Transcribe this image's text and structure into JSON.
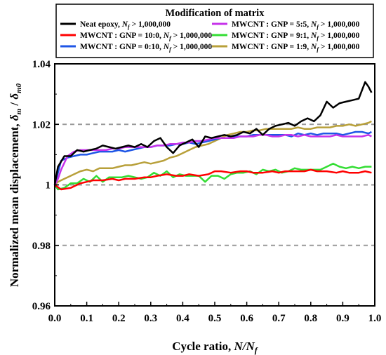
{
  "chart_data": {
    "type": "line",
    "title": "",
    "xlabel": {
      "prefix": "Cycle ratio, ",
      "math": "N/N",
      "sub": "f"
    },
    "ylabel": {
      "prefix": "Normalized mean displacement, ",
      "num": "δ",
      "num_sub": "m",
      "den": "δ",
      "den_sub": "m0"
    },
    "xlim": [
      0,
      1
    ],
    "ylim": [
      0.96,
      1.04
    ],
    "x_ticks": [
      "0.0",
      "0.1",
      "0.2",
      "0.3",
      "0.4",
      "0.5",
      "0.6",
      "0.7",
      "0.8",
      "0.9",
      "1.0"
    ],
    "y_ticks": [
      "0.96",
      "0.98",
      "1",
      "1.02",
      "1.04"
    ],
    "reference_lines": [
      0.98,
      1.0,
      1.02
    ],
    "legend": {
      "title": "Modification of matrix",
      "placement": "top, inside plot"
    },
    "series": [
      {
        "name": "Neat epoxy, ",
        "name_suffix": " > 1,000,000",
        "color": "#000000",
        "x": [
          0,
          0.01,
          0.03,
          0.05,
          0.07,
          0.09,
          0.11,
          0.13,
          0.15,
          0.17,
          0.19,
          0.21,
          0.23,
          0.25,
          0.27,
          0.29,
          0.31,
          0.33,
          0.35,
          0.37,
          0.39,
          0.41,
          0.43,
          0.45,
          0.47,
          0.49,
          0.51,
          0.53,
          0.55,
          0.57,
          0.59,
          0.61,
          0.63,
          0.65,
          0.67,
          0.69,
          0.71,
          0.73,
          0.75,
          0.77,
          0.79,
          0.81,
          0.83,
          0.85,
          0.87,
          0.89,
          0.91,
          0.93,
          0.95,
          0.97,
          0.98,
          0.99
        ],
        "y": [
          1.0,
          1.006,
          1.0095,
          1.0095,
          1.0115,
          1.011,
          1.0115,
          1.012,
          1.013,
          1.0125,
          1.012,
          1.0125,
          1.013,
          1.0125,
          1.0135,
          1.0125,
          1.0145,
          1.0155,
          1.0125,
          1.0105,
          1.013,
          1.014,
          1.015,
          1.0125,
          1.016,
          1.0155,
          1.016,
          1.0165,
          1.016,
          1.0165,
          1.0175,
          1.017,
          1.0185,
          1.0165,
          1.0185,
          1.0195,
          1.02,
          1.0205,
          1.0195,
          1.021,
          1.022,
          1.021,
          1.023,
          1.0275,
          1.0255,
          1.027,
          1.0275,
          1.028,
          1.0285,
          1.034,
          1.0325,
          1.0305
        ]
      },
      {
        "name": "MWCNT : GNP = 10:0, ",
        "name_suffix": " > 1,000,000",
        "color": "#ff0000",
        "x": [
          0,
          0.02,
          0.05,
          0.08,
          0.1,
          0.12,
          0.15,
          0.18,
          0.2,
          0.22,
          0.25,
          0.28,
          0.3,
          0.32,
          0.35,
          0.38,
          0.4,
          0.42,
          0.45,
          0.48,
          0.5,
          0.52,
          0.55,
          0.58,
          0.6,
          0.62,
          0.65,
          0.68,
          0.7,
          0.72,
          0.75,
          0.78,
          0.8,
          0.82,
          0.85,
          0.88,
          0.9,
          0.92,
          0.95,
          0.97,
          0.99
        ],
        "y": [
          1.0,
          0.9985,
          0.999,
          1.0005,
          1.001,
          1.0015,
          1.0015,
          1.002,
          1.0015,
          1.002,
          1.002,
          1.0025,
          1.0025,
          1.003,
          1.0035,
          1.003,
          1.003,
          1.0035,
          1.003,
          1.0035,
          1.0045,
          1.0045,
          1.004,
          1.0045,
          1.0045,
          1.004,
          1.004,
          1.0045,
          1.004,
          1.0045,
          1.0045,
          1.0045,
          1.005,
          1.0045,
          1.0045,
          1.004,
          1.0045,
          1.004,
          1.004,
          1.0045,
          1.004
        ]
      },
      {
        "name": "MWCNT : GNP = 0:10, ",
        "name_suffix": " > 1,000,000",
        "color": "#1f56e6",
        "x": [
          0,
          0.01,
          0.02,
          0.04,
          0.06,
          0.08,
          0.1,
          0.12,
          0.14,
          0.16,
          0.18,
          0.2,
          0.22,
          0.24,
          0.26,
          0.28,
          0.3,
          0.32,
          0.34,
          0.36,
          0.38,
          0.4,
          0.42,
          0.44,
          0.46,
          0.48,
          0.5,
          0.52,
          0.54,
          0.56,
          0.58,
          0.6,
          0.62,
          0.64,
          0.66,
          0.68,
          0.7,
          0.72,
          0.74,
          0.76,
          0.78,
          0.8,
          0.82,
          0.84,
          0.86,
          0.88,
          0.9,
          0.92,
          0.94,
          0.96,
          0.98,
          0.99
        ],
        "y": [
          1.0,
          1.004,
          1.008,
          1.009,
          1.0095,
          1.01,
          1.01,
          1.0105,
          1.011,
          1.011,
          1.011,
          1.0115,
          1.011,
          1.0115,
          1.012,
          1.0125,
          1.0125,
          1.013,
          1.013,
          1.013,
          1.0135,
          1.0135,
          1.014,
          1.0135,
          1.014,
          1.0145,
          1.015,
          1.0155,
          1.0155,
          1.016,
          1.016,
          1.016,
          1.0165,
          1.0165,
          1.0165,
          1.0165,
          1.0165,
          1.0165,
          1.016,
          1.017,
          1.0165,
          1.017,
          1.0165,
          1.017,
          1.017,
          1.017,
          1.0165,
          1.017,
          1.0175,
          1.0175,
          1.017,
          1.0175
        ]
      },
      {
        "name": "MWCNT : GNP = 5:5, ",
        "name_suffix": " > 1,000,000",
        "color": "#c633ea",
        "x": [
          0,
          0.01,
          0.02,
          0.04,
          0.06,
          0.08,
          0.1,
          0.12,
          0.14,
          0.16,
          0.18,
          0.2,
          0.22,
          0.24,
          0.26,
          0.28,
          0.3,
          0.32,
          0.34,
          0.36,
          0.38,
          0.4,
          0.42,
          0.44,
          0.46,
          0.48,
          0.5,
          0.52,
          0.54,
          0.56,
          0.58,
          0.6,
          0.62,
          0.64,
          0.66,
          0.68,
          0.7,
          0.72,
          0.74,
          0.76,
          0.78,
          0.8,
          0.82,
          0.84,
          0.86,
          0.88,
          0.9,
          0.92,
          0.94,
          0.96,
          0.98,
          0.99
        ],
        "y": [
          1.0,
          1.002,
          1.005,
          1.0095,
          1.011,
          1.0115,
          1.0115,
          1.0115,
          1.0115,
          1.0115,
          1.012,
          1.012,
          1.0125,
          1.0125,
          1.0125,
          1.0125,
          1.0125,
          1.013,
          1.013,
          1.0135,
          1.0135,
          1.014,
          1.014,
          1.0145,
          1.0145,
          1.015,
          1.0155,
          1.0155,
          1.0155,
          1.0155,
          1.016,
          1.016,
          1.016,
          1.0165,
          1.0165,
          1.016,
          1.016,
          1.0165,
          1.0165,
          1.016,
          1.0165,
          1.016,
          1.016,
          1.016,
          1.016,
          1.0165,
          1.016,
          1.016,
          1.016,
          1.016,
          1.0165,
          1.016
        ]
      },
      {
        "name": "MWCNT : GNP = 9:1, ",
        "name_suffix": " > 1,000,000",
        "color": "#33dd33",
        "x": [
          0,
          0.01,
          0.03,
          0.05,
          0.07,
          0.09,
          0.11,
          0.13,
          0.15,
          0.17,
          0.19,
          0.21,
          0.23,
          0.25,
          0.27,
          0.29,
          0.31,
          0.33,
          0.35,
          0.37,
          0.39,
          0.41,
          0.43,
          0.45,
          0.47,
          0.49,
          0.51,
          0.53,
          0.55,
          0.57,
          0.59,
          0.61,
          0.63,
          0.65,
          0.67,
          0.69,
          0.71,
          0.73,
          0.75,
          0.77,
          0.79,
          0.81,
          0.83,
          0.85,
          0.87,
          0.89,
          0.91,
          0.93,
          0.95,
          0.97,
          0.99
        ],
        "y": [
          1.0,
          0.9985,
          0.999,
          1.0005,
          1.0005,
          1.002,
          1.001,
          1.003,
          1.001,
          1.0025,
          1.0025,
          1.0025,
          1.003,
          1.0025,
          1.002,
          1.0025,
          1.004,
          1.003,
          1.0045,
          1.0025,
          1.0035,
          1.003,
          1.003,
          1.003,
          1.001,
          1.003,
          1.003,
          1.002,
          1.0035,
          1.004,
          1.004,
          1.0045,
          1.0035,
          1.005,
          1.0045,
          1.005,
          1.004,
          1.0045,
          1.0055,
          1.005,
          1.005,
          1.005,
          1.005,
          1.006,
          1.007,
          1.006,
          1.0055,
          1.006,
          1.0055,
          1.006,
          1.006
        ]
      },
      {
        "name": "MWCNT : GNP = 1:9, ",
        "name_suffix": " > 1,000,000",
        "color": "#b8a03a",
        "x": [
          0,
          0.01,
          0.02,
          0.04,
          0.06,
          0.08,
          0.1,
          0.12,
          0.14,
          0.16,
          0.18,
          0.2,
          0.22,
          0.24,
          0.26,
          0.28,
          0.3,
          0.32,
          0.34,
          0.36,
          0.38,
          0.4,
          0.42,
          0.44,
          0.46,
          0.48,
          0.5,
          0.52,
          0.54,
          0.56,
          0.58,
          0.6,
          0.62,
          0.64,
          0.66,
          0.68,
          0.7,
          0.72,
          0.74,
          0.76,
          0.78,
          0.8,
          0.82,
          0.84,
          0.86,
          0.88,
          0.9,
          0.92,
          0.94,
          0.96,
          0.98,
          0.99
        ],
        "y": [
          1.0,
          1.001,
          1.0015,
          1.0025,
          1.0035,
          1.0045,
          1.005,
          1.0045,
          1.0055,
          1.0055,
          1.0055,
          1.006,
          1.0065,
          1.0065,
          1.007,
          1.0075,
          1.007,
          1.0075,
          1.008,
          1.009,
          1.0095,
          1.0105,
          1.0115,
          1.0125,
          1.013,
          1.0135,
          1.0145,
          1.0155,
          1.0165,
          1.017,
          1.0175,
          1.0175,
          1.018,
          1.018,
          1.0185,
          1.0185,
          1.0185,
          1.0185,
          1.0185,
          1.019,
          1.0185,
          1.0185,
          1.019,
          1.019,
          1.019,
          1.0195,
          1.0195,
          1.02,
          1.0195,
          1.02,
          1.0205,
          1.021
        ]
      }
    ]
  }
}
